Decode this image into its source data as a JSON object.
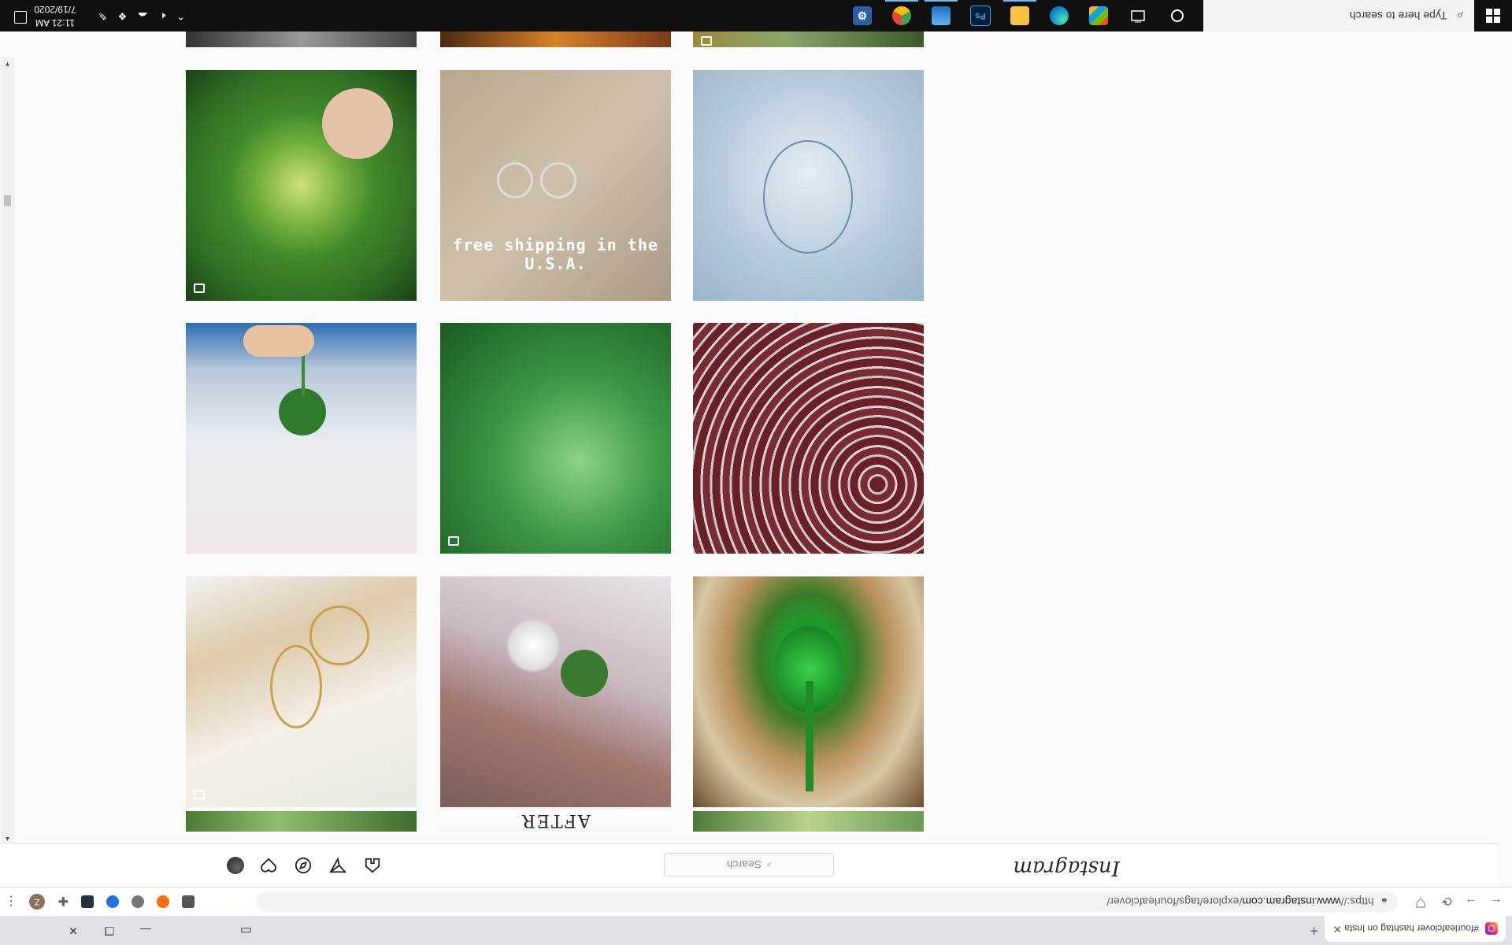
{
  "browser": {
    "tab_title": "#fourleafclover hashtag on Insta",
    "url_scheme": "https://",
    "url_host": "www.instagram.com",
    "url_path": "/explore/tags/fourleafclover/",
    "extension_label": "Z"
  },
  "instagram": {
    "logo": "Instagram",
    "search_placeholder": "Search"
  },
  "grid": {
    "tile_captions": {
      "shipping": "free shipping in the U.S.A.",
      "after": "AFTER"
    }
  },
  "taskbar": {
    "search_placeholder": "Type here to search",
    "photoshop_label": "Ps",
    "time": "11:21 AM",
    "date": "7/19/2020"
  },
  "colors": {
    "taskbar_bg": "#101010",
    "ig_bg": "#fafafa",
    "chrome_tabstrip": "#dee1e6"
  }
}
